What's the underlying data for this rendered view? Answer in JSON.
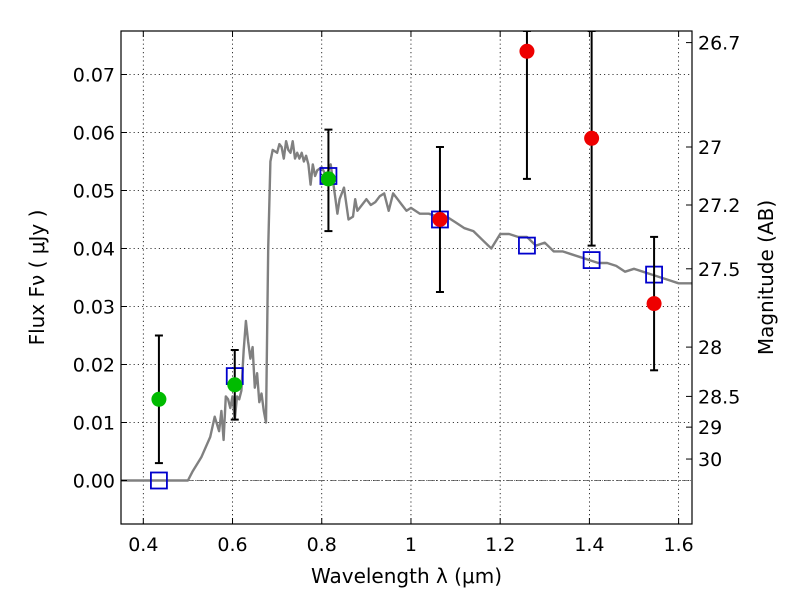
{
  "chart_data": {
    "type": "scatter",
    "title": "",
    "xlabel": "Wavelength  λ (μm)",
    "ylabel": "Flux  Fν  ( μJy )",
    "ylabel_right": "Magnitude (AB)",
    "xlim": [
      0.35,
      1.63
    ],
    "ylim": [
      -0.0075,
      0.0775
    ],
    "grid": true,
    "x_ticks": [
      0.4,
      0.6,
      0.8,
      1.0,
      1.2,
      1.4,
      1.6
    ],
    "x_tick_labels": [
      "0.4",
      "0.6",
      "0.8",
      "1",
      "1.2",
      "1.4",
      "1.6"
    ],
    "y_ticks": [
      0.0,
      0.01,
      0.02,
      0.03,
      0.04,
      0.05,
      0.06,
      0.07
    ],
    "y_tick_labels": [
      "0.00",
      "0.01",
      "0.02",
      "0.03",
      "0.04",
      "0.05",
      "0.06",
      "0.07"
    ],
    "right_ticks": [
      {
        "flux": 0.0755,
        "label": "26.7"
      },
      {
        "flux": 0.0575,
        "label": "27"
      },
      {
        "flux": 0.0475,
        "label": "27.2"
      },
      {
        "flux": 0.0365,
        "label": "27.5"
      },
      {
        "flux": 0.023,
        "label": "28"
      },
      {
        "flux": 0.0145,
        "label": "28.5"
      },
      {
        "flux": 0.0092,
        "label": "29"
      },
      {
        "flux": 0.0037,
        "label": "30"
      }
    ],
    "zero_line": 0.0,
    "series": [
      {
        "kind": "line",
        "color": "#808080",
        "x": [
          0.35,
          0.5,
          0.51,
          0.53,
          0.55,
          0.56,
          0.57,
          0.575,
          0.58,
          0.585,
          0.59,
          0.595,
          0.6,
          0.605,
          0.61,
          0.615,
          0.62,
          0.625,
          0.63,
          0.635,
          0.64,
          0.645,
          0.65,
          0.655,
          0.66,
          0.665,
          0.67,
          0.675,
          0.68,
          0.685,
          0.69,
          0.7,
          0.705,
          0.71,
          0.715,
          0.72,
          0.725,
          0.73,
          0.735,
          0.74,
          0.745,
          0.75,
          0.755,
          0.76,
          0.765,
          0.77,
          0.775,
          0.78,
          0.785,
          0.79,
          0.8,
          0.81,
          0.82,
          0.83,
          0.835,
          0.84,
          0.85,
          0.86,
          0.87,
          0.875,
          0.88,
          0.89,
          0.9,
          0.91,
          0.92,
          0.93,
          0.94,
          0.95,
          0.96,
          0.97,
          0.98,
          0.99,
          1.0,
          1.02,
          1.04,
          1.06,
          1.08,
          1.1,
          1.12,
          1.14,
          1.16,
          1.18,
          1.2,
          1.22,
          1.24,
          1.26,
          1.28,
          1.3,
          1.32,
          1.34,
          1.36,
          1.38,
          1.4,
          1.42,
          1.44,
          1.46,
          1.48,
          1.5,
          1.52,
          1.54,
          1.56,
          1.58,
          1.6,
          1.63
        ],
        "y": [
          0.0,
          0.0,
          0.0015,
          0.004,
          0.0075,
          0.011,
          0.0085,
          0.012,
          0.007,
          0.0145,
          0.014,
          0.0125,
          0.0145,
          0.0105,
          0.0145,
          0.014,
          0.0155,
          0.0225,
          0.0275,
          0.024,
          0.021,
          0.023,
          0.016,
          0.0185,
          0.0135,
          0.015,
          0.012,
          0.01,
          0.04,
          0.055,
          0.057,
          0.0565,
          0.058,
          0.0575,
          0.0555,
          0.0585,
          0.057,
          0.0565,
          0.0585,
          0.0555,
          0.0565,
          0.0555,
          0.0565,
          0.055,
          0.056,
          0.0545,
          0.051,
          0.0545,
          0.0525,
          0.0535,
          0.054,
          0.0525,
          0.0545,
          0.049,
          0.046,
          0.0485,
          0.0505,
          0.045,
          0.0455,
          0.0485,
          0.0465,
          0.0475,
          0.0485,
          0.0475,
          0.048,
          0.049,
          0.0495,
          0.0465,
          0.0495,
          0.0485,
          0.0475,
          0.0465,
          0.047,
          0.046,
          0.046,
          0.0455,
          0.0455,
          0.0445,
          0.0435,
          0.043,
          0.0415,
          0.04,
          0.0425,
          0.0425,
          0.042,
          0.042,
          0.0405,
          0.041,
          0.0395,
          0.0395,
          0.039,
          0.0385,
          0.038,
          0.0375,
          0.0375,
          0.037,
          0.036,
          0.0365,
          0.036,
          0.0355,
          0.035,
          0.0345,
          0.034,
          0.034
        ]
      },
      {
        "kind": "squares",
        "color": "#0000cc",
        "x": [
          0.435,
          0.605,
          0.815,
          1.065,
          1.26,
          1.405,
          1.545
        ],
        "y": [
          0.0,
          0.018,
          0.0525,
          0.045,
          0.0405,
          0.038,
          0.0355
        ]
      },
      {
        "kind": "points",
        "color": "#00bb00",
        "x": [
          0.435,
          0.605,
          0.815
        ],
        "y": [
          0.014,
          0.0165,
          0.052
        ],
        "yerr_low": [
          0.003,
          0.0105,
          0.043
        ],
        "yerr_high": [
          0.025,
          0.0225,
          0.0605
        ]
      },
      {
        "kind": "points",
        "color": "#ee0000",
        "x": [
          1.065,
          1.26,
          1.405,
          1.545
        ],
        "y": [
          0.045,
          0.074,
          0.059,
          0.0305
        ],
        "yerr_low": [
          0.0325,
          0.052,
          0.0405,
          0.019
        ],
        "yerr_high": [
          0.0575,
          0.0775,
          0.0775,
          0.042
        ]
      }
    ]
  }
}
